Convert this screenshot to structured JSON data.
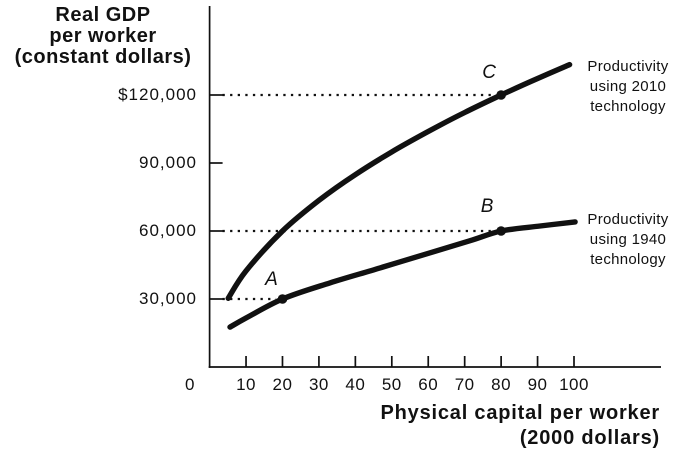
{
  "chart_data": {
    "type": "line",
    "title": "Real GDP\nper worker\n(constant dollars)",
    "xlabel": "Physical capital per worker\n(2000 dollars)",
    "ylabel": "",
    "xlim": [
      0,
      123
    ],
    "ylim": [
      0,
      160000
    ],
    "grid": false,
    "x_ticks": [
      0,
      10,
      20,
      30,
      40,
      50,
      60,
      70,
      80,
      90,
      100
    ],
    "y_ticks": [
      {
        "value": 30000,
        "label": "30,000"
      },
      {
        "value": 60000,
        "label": "60,000"
      },
      {
        "value": 90000,
        "label": "90,000"
      },
      {
        "value": 120000,
        "label": "$120,000"
      }
    ],
    "series": [
      {
        "id": "2010",
        "name": "Productivity using 2010 technology",
        "label_lines": "Productivity\nusing 2010\ntechnology",
        "points": [
          [
            5.1,
            30300
          ],
          [
            10,
            42400
          ],
          [
            20,
            60000
          ],
          [
            30,
            73500
          ],
          [
            40,
            84900
          ],
          [
            50,
            94900
          ],
          [
            60,
            103900
          ],
          [
            70,
            112300
          ],
          [
            80,
            120000
          ],
          [
            90,
            127300
          ],
          [
            98.8,
            133400
          ]
        ]
      },
      {
        "id": "1940",
        "name": "Productivity using 1940 technology",
        "label_lines": "Productivity\nusing 1940\ntechnology",
        "points": [
          [
            5.6,
            17600
          ],
          [
            10,
            21600
          ],
          [
            20,
            30000
          ],
          [
            33,
            37100
          ],
          [
            46.8,
            43700
          ],
          [
            60.5,
            50400
          ],
          [
            71.5,
            55700
          ],
          [
            80,
            60000
          ],
          [
            90.7,
            62200
          ],
          [
            100.3,
            64000
          ]
        ]
      }
    ],
    "annotated_points": [
      {
        "label": "A",
        "x": 20,
        "y": 30000
      },
      {
        "label": "B",
        "x": 80,
        "y": 60000
      },
      {
        "label": "C",
        "x": 80,
        "y": 120000
      }
    ],
    "dotted_guides": [
      {
        "y": 120000,
        "x_to": 78
      },
      {
        "y": 60000,
        "x_to": 77.5
      },
      {
        "y": 30000,
        "x_to": 18.2
      }
    ],
    "origin_label": "0",
    "colors": {
      "ink": "#111111",
      "background": "#ffffff"
    }
  }
}
